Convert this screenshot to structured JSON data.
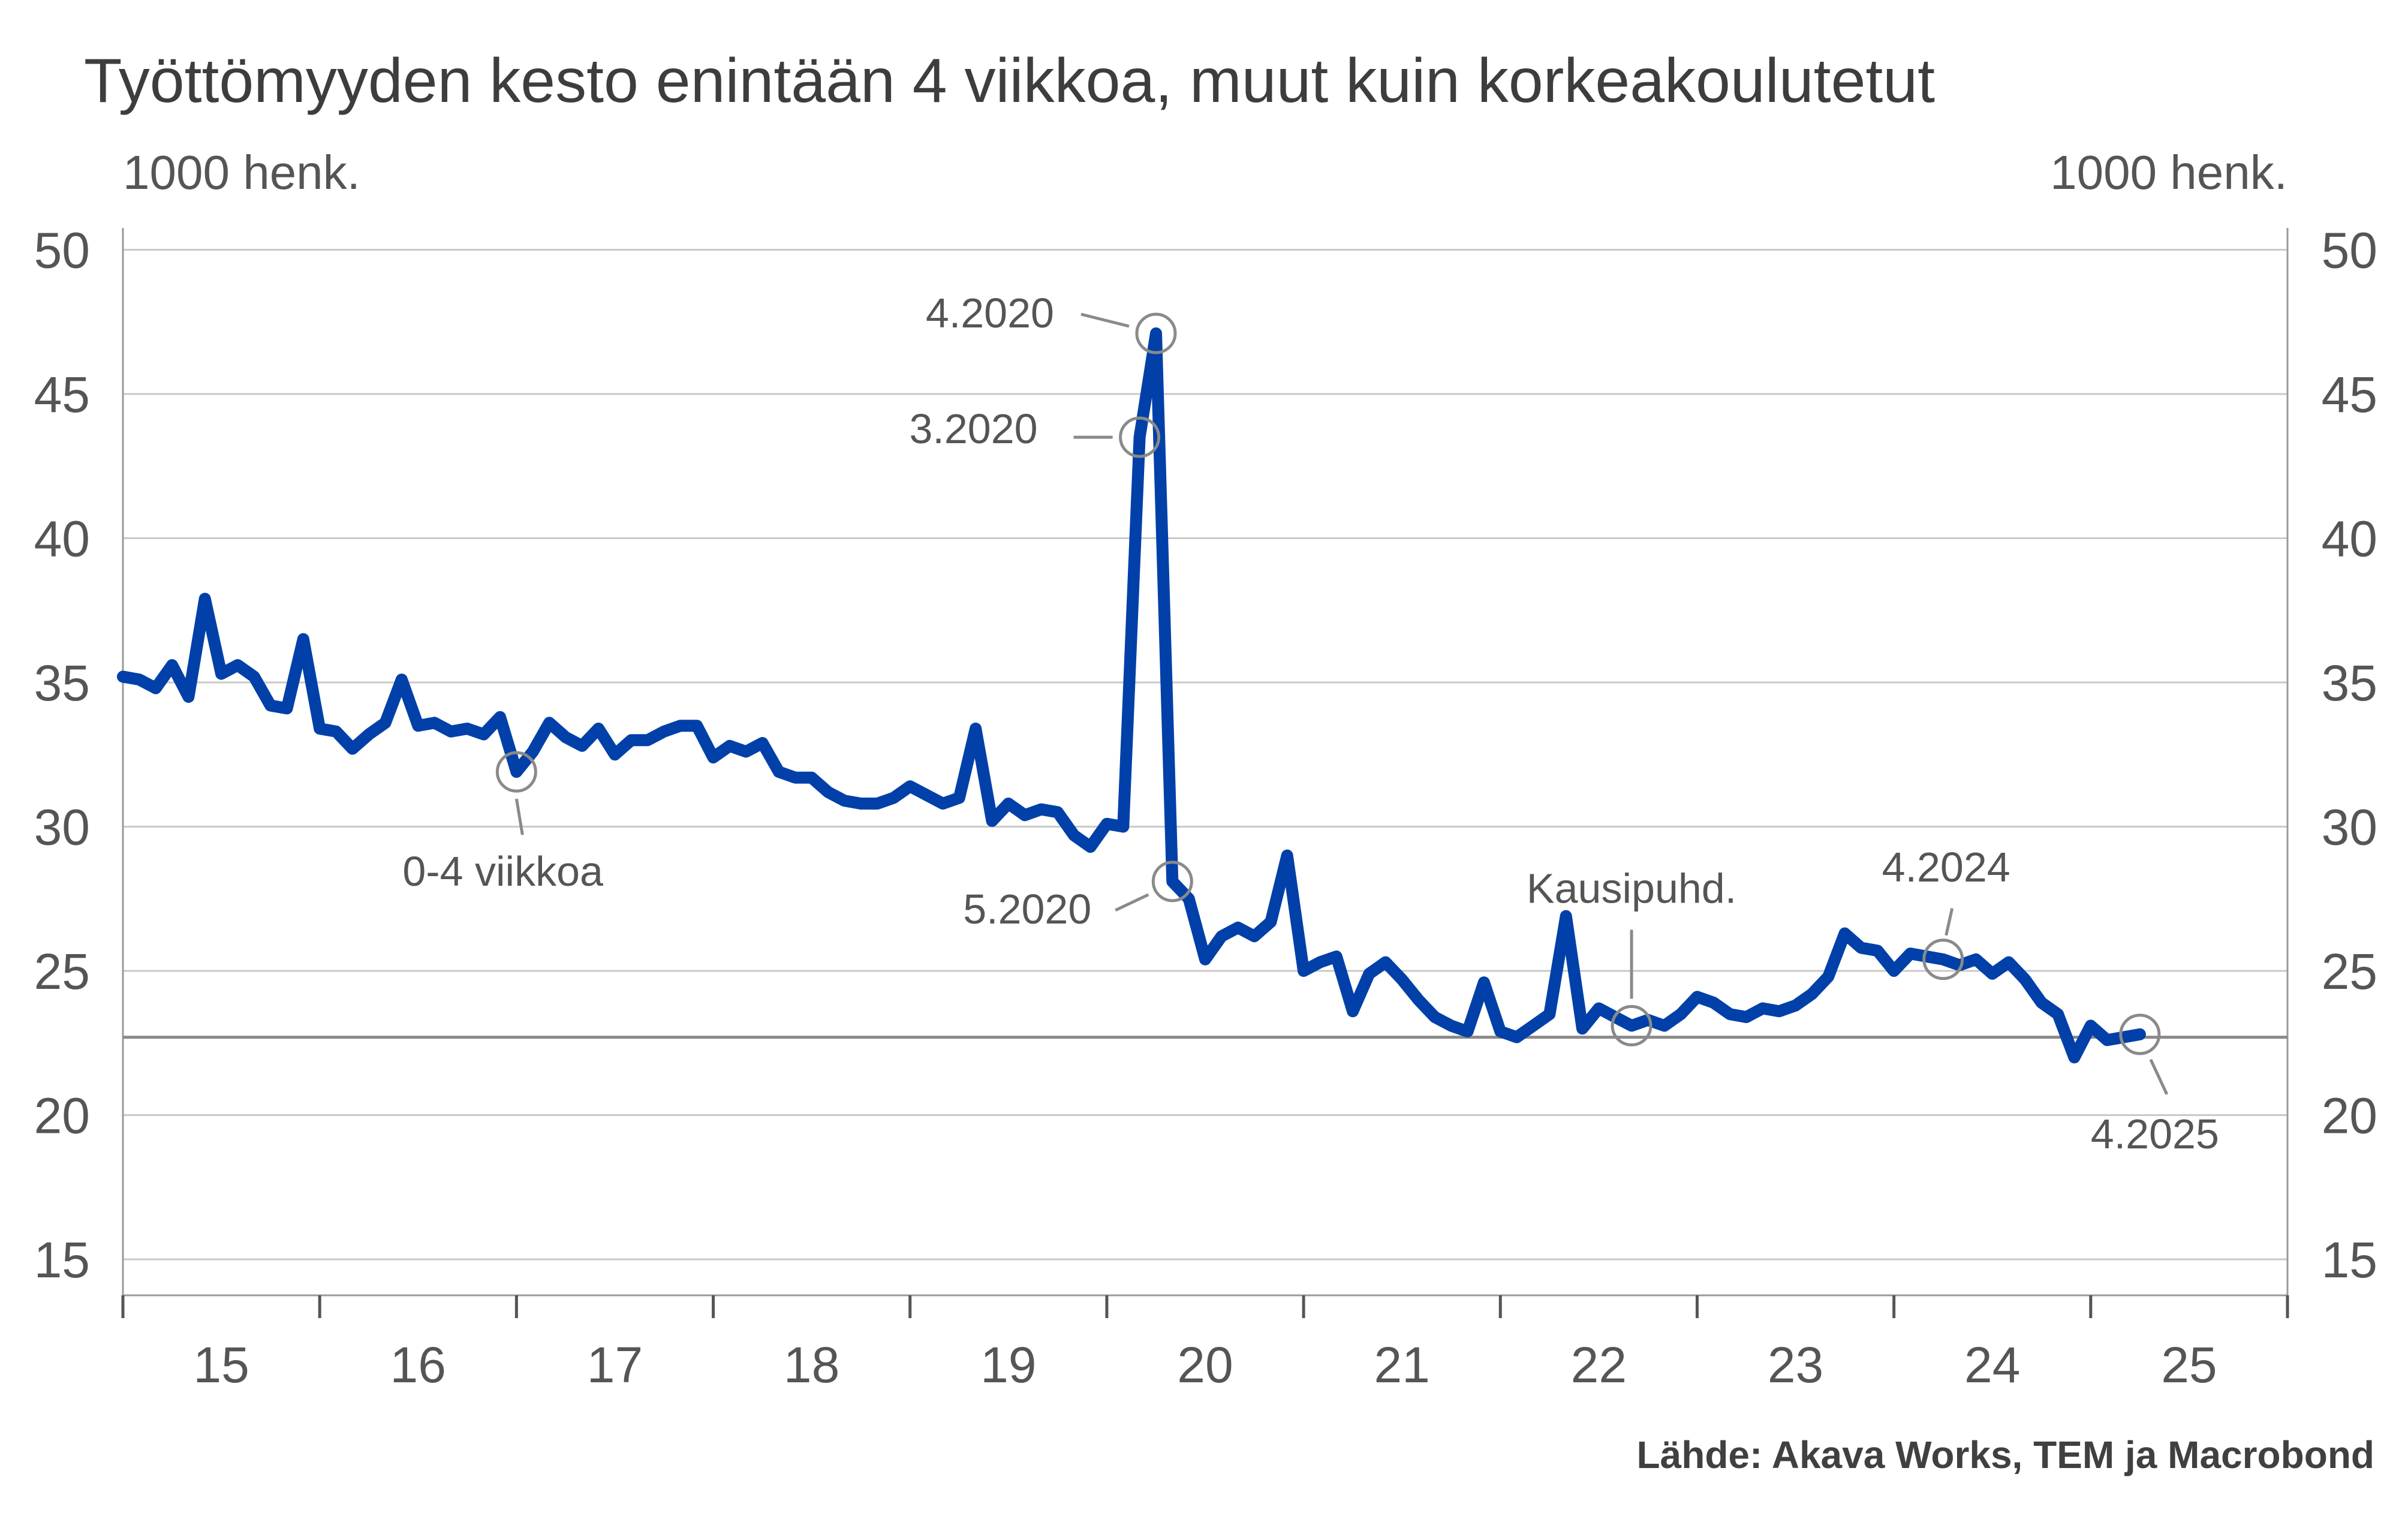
{
  "chart_data": {
    "type": "line",
    "title": "Työttömyyden kesto enintään 4 viikkoa, muut kuin korkeakoulutetut",
    "ylabel_left": "1000 henk.",
    "ylabel_right": "1000 henk.",
    "source": "Lähde: Akava Works, TEM ja Macrobond",
    "ylim": [
      13,
      52
    ],
    "yticks": [
      "15",
      "20",
      "25",
      "30",
      "35",
      "40",
      "45",
      "50"
    ],
    "xticks": [
      "15",
      "16",
      "17",
      "18",
      "19",
      "20",
      "21",
      "22",
      "23",
      "24",
      "25"
    ],
    "grid": true,
    "color": "#0040a8",
    "reference_line": 22.7,
    "x": [
      "1.2015",
      "2.2015",
      "3.2015",
      "4.2015",
      "5.2015",
      "6.2015",
      "7.2015",
      "8.2015",
      "9.2015",
      "10.2015",
      "11.2015",
      "12.2015",
      "1.2016",
      "2.2016",
      "3.2016",
      "4.2016",
      "5.2016",
      "6.2016",
      "7.2016",
      "8.2016",
      "9.2016",
      "10.2016",
      "11.2016",
      "12.2016",
      "1.2017",
      "2.2017",
      "3.2017",
      "4.2017",
      "5.2017",
      "6.2017",
      "7.2017",
      "8.2017",
      "9.2017",
      "10.2017",
      "11.2017",
      "12.2017",
      "1.2018",
      "2.2018",
      "3.2018",
      "4.2018",
      "5.2018",
      "6.2018",
      "7.2018",
      "8.2018",
      "9.2018",
      "10.2018",
      "11.2018",
      "12.2018",
      "1.2019",
      "2.2019",
      "3.2019",
      "4.2019",
      "5.2019",
      "6.2019",
      "7.2019",
      "8.2019",
      "9.2019",
      "10.2019",
      "11.2019",
      "12.2019",
      "1.2020",
      "2.2020",
      "3.2020",
      "4.2020",
      "5.2020",
      "6.2020",
      "7.2020",
      "8.2020",
      "9.2020",
      "10.2020",
      "11.2020",
      "12.2020",
      "1.2021",
      "2.2021",
      "3.2021",
      "4.2021",
      "5.2021",
      "6.2021",
      "7.2021",
      "8.2021",
      "9.2021",
      "10.2021",
      "11.2021",
      "12.2021",
      "1.2022",
      "2.2022",
      "3.2022",
      "4.2022",
      "5.2022",
      "6.2022",
      "7.2022",
      "8.2022",
      "9.2022",
      "10.2022",
      "11.2022",
      "12.2022",
      "1.2023",
      "2.2023",
      "3.2023",
      "4.2023",
      "5.2023",
      "6.2023",
      "7.2023",
      "8.2023",
      "9.2023",
      "10.2023",
      "11.2023",
      "12.2023",
      "1.2024",
      "2.2024",
      "3.2024",
      "4.2024",
      "5.2024",
      "6.2024",
      "7.2024",
      "8.2024",
      "9.2024",
      "10.2024",
      "11.2024",
      "12.2024",
      "1.2025",
      "2.2025",
      "3.2025",
      "4.2025"
    ],
    "values": [
      35.2,
      35.1,
      34.8,
      35.6,
      34.5,
      37.9,
      35.3,
      35.6,
      35.2,
      34.2,
      34.1,
      36.5,
      33.4,
      33.3,
      32.7,
      33.2,
      33.6,
      35.1,
      33.5,
      33.6,
      33.3,
      33.4,
      33.2,
      33.8,
      31.9,
      32.6,
      33.6,
      33.1,
      32.8,
      33.4,
      32.5,
      33.0,
      33.0,
      33.3,
      33.5,
      33.5,
      32.4,
      32.8,
      32.6,
      32.9,
      31.9,
      31.7,
      31.7,
      31.2,
      30.9,
      30.8,
      30.8,
      31.0,
      31.4,
      31.1,
      30.8,
      31.0,
      33.4,
      30.2,
      30.8,
      30.4,
      30.6,
      30.5,
      29.7,
      29.3,
      30.1,
      30.0,
      43.5,
      47.1,
      28.1,
      27.5,
      25.4,
      26.2,
      26.5,
      26.2,
      26.7,
      29.0,
      25.0,
      25.3,
      25.5,
      23.6,
      24.9,
      25.3,
      24.7,
      24.0,
      23.4,
      23.1,
      22.9,
      24.6,
      22.9,
      22.7,
      23.1,
      23.5,
      26.9,
      23.0,
      23.7,
      23.4,
      23.1,
      23.3,
      23.1,
      23.5,
      24.1,
      23.9,
      23.5,
      23.4,
      23.7,
      23.6,
      23.8,
      24.2,
      24.8,
      26.3,
      25.8,
      25.7,
      25.0,
      25.6,
      25.5,
      25.4,
      25.2,
      25.4,
      24.9,
      25.3,
      24.7,
      23.9,
      23.5,
      22.0,
      23.1,
      22.6,
      22.7,
      22.8
    ],
    "annotations": [
      {
        "label": "0-4 viikkoa",
        "at": "1.2017"
      },
      {
        "label": "3.2020",
        "at": "3.2020"
      },
      {
        "label": "4.2020",
        "at": "4.2020"
      },
      {
        "label": "5.2020",
        "at": "5.2020"
      },
      {
        "label": "Kausipuhd.",
        "at": "9.2022"
      },
      {
        "label": "4.2024",
        "at": "4.2024"
      },
      {
        "label": "4.2025",
        "at": "4.2025"
      }
    ]
  }
}
